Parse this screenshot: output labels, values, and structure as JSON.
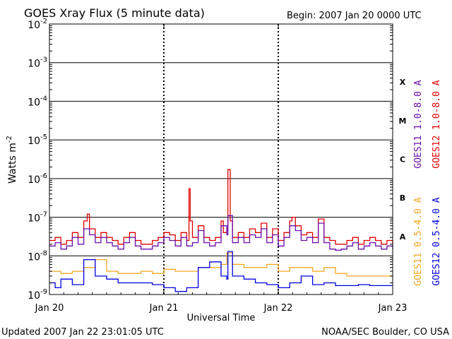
{
  "chart_data": {
    "type": "line",
    "title": "GOES Xray Flux (5 minute data)",
    "begin_text": "Begin:  2007 Jan 20 0000 UTC",
    "xlabel": "Universal Time",
    "ylabel": "Watts m",
    "ylabel_superscript": "-2",
    "y_scale": "log",
    "ylim": [
      1e-09,
      0.01
    ],
    "xlim_days": [
      0,
      3
    ],
    "grid": "horizontal decade lines; dotted vertical day lines",
    "x_ticks": [
      {
        "value": 0,
        "label": "Jan 20"
      },
      {
        "value": 1,
        "label": "Jan 21"
      },
      {
        "value": 2,
        "label": "Jan 22"
      },
      {
        "value": 3,
        "label": "Jan 23"
      }
    ],
    "y_ticks": [
      {
        "exp": -9,
        "base": "10",
        "sup": "-9"
      },
      {
        "exp": -8,
        "base": "10",
        "sup": "-8"
      },
      {
        "exp": -7,
        "base": "10",
        "sup": "-7"
      },
      {
        "exp": -6,
        "base": "10",
        "sup": "-6"
      },
      {
        "exp": -5,
        "base": "10",
        "sup": "-5"
      },
      {
        "exp": -4,
        "base": "10",
        "sup": "-4"
      },
      {
        "exp": -3,
        "base": "10",
        "sup": "-3"
      },
      {
        "exp": -2,
        "base": "10",
        "sup": "-2"
      }
    ],
    "flare_classes": [
      {
        "label": "X",
        "exp": -3.5
      },
      {
        "label": "M",
        "exp": -4.5
      },
      {
        "label": "C",
        "exp": -5.5
      },
      {
        "label": "B",
        "exp": -6.5
      },
      {
        "label": "A",
        "exp": -7.5
      }
    ],
    "legend_right": [
      {
        "name": "GOES11 1.0-8.0 A",
        "color": "#6a0dad"
      },
      {
        "name": "GOES12 1.0-8.0 A",
        "color": "#e00000"
      }
    ],
    "legend_bottom": [
      {
        "name": "GOES11 0.5-4.0 A",
        "color": "#f5a623"
      },
      {
        "name": "GOES12 0.5-4.0 A",
        "color": "#0000e0"
      }
    ],
    "series": [
      {
        "name": "GOES12 1.0-8.0 A",
        "color": "#e00000",
        "x": [
          0.0,
          0.05,
          0.1,
          0.15,
          0.2,
          0.25,
          0.3,
          0.33,
          0.35,
          0.4,
          0.45,
          0.5,
          0.55,
          0.6,
          0.65,
          0.7,
          0.75,
          0.8,
          0.85,
          0.9,
          0.95,
          1.0,
          1.05,
          1.1,
          1.15,
          1.2,
          1.22,
          1.23,
          1.25,
          1.3,
          1.35,
          1.4,
          1.45,
          1.5,
          1.52,
          1.55,
          1.56,
          1.58,
          1.6,
          1.65,
          1.7,
          1.75,
          1.8,
          1.85,
          1.9,
          1.95,
          2.0,
          2.05,
          2.1,
          2.12,
          2.15,
          2.2,
          2.25,
          2.3,
          2.35,
          2.4,
          2.45,
          2.5,
          2.55,
          2.6,
          2.65,
          2.7,
          2.75,
          2.8,
          2.85,
          2.9,
          2.95,
          3.0
        ],
        "y": [
          2.5e-08,
          3e-08,
          2e-08,
          2.5e-08,
          4e-08,
          3e-08,
          8e-08,
          1.2e-07,
          5e-08,
          3e-08,
          4e-08,
          3e-08,
          2.5e-08,
          2e-08,
          3e-08,
          4e-08,
          2.5e-08,
          2e-08,
          2e-08,
          2.5e-08,
          3e-08,
          4e-08,
          3.5e-08,
          2.5e-08,
          4e-08,
          2.5e-08,
          5.5e-07,
          8e-08,
          3e-08,
          6e-08,
          3e-08,
          2.5e-08,
          3e-08,
          8e-08,
          4e-08,
          5e-08,
          1.7e-06,
          8e-08,
          3e-08,
          4e-08,
          3e-08,
          5e-08,
          4e-08,
          7e-08,
          3e-08,
          5e-08,
          2.5e-08,
          4e-08,
          8e-08,
          1e-07,
          6e-08,
          3.5e-08,
          4e-08,
          3e-08,
          9e-08,
          3e-08,
          2.5e-08,
          2e-08,
          2e-08,
          2.5e-08,
          3e-08,
          2e-08,
          2.5e-08,
          3e-08,
          2.5e-08,
          2e-08,
          2.5e-08,
          2e-08
        ]
      },
      {
        "name": "GOES11 1.0-8.0 A",
        "color": "#6a0dad",
        "x": [
          0.0,
          0.05,
          0.1,
          0.15,
          0.2,
          0.25,
          0.3,
          0.35,
          0.4,
          0.45,
          0.5,
          0.55,
          0.6,
          0.65,
          0.7,
          0.75,
          0.8,
          0.85,
          0.9,
          0.95,
          1.0,
          1.05,
          1.1,
          1.15,
          1.2,
          1.25,
          1.3,
          1.35,
          1.4,
          1.45,
          1.5,
          1.55,
          1.56,
          1.6,
          1.65,
          1.7,
          1.75,
          1.8,
          1.85,
          1.9,
          1.95,
          2.0,
          2.05,
          2.1,
          2.15,
          2.2,
          2.25,
          2.3,
          2.35,
          2.4,
          2.45,
          2.5,
          2.55,
          2.6,
          2.65,
          2.7,
          2.75,
          2.8,
          2.85,
          2.9,
          2.95,
          3.0
        ],
        "y": [
          1.8e-08,
          2.2e-08,
          1.5e-08,
          1.8e-08,
          3e-08,
          2e-08,
          5e-08,
          3.5e-08,
          2.2e-08,
          3e-08,
          2.2e-08,
          1.8e-08,
          1.5e-08,
          2.2e-08,
          3e-08,
          1.8e-08,
          1.5e-08,
          1.5e-08,
          1.8e-08,
          2.2e-08,
          3e-08,
          2.5e-08,
          1.8e-08,
          3e-08,
          1.8e-08,
          2.2e-08,
          4.5e-08,
          2.2e-08,
          1.8e-08,
          2.2e-08,
          6e-08,
          3.5e-08,
          1.1e-07,
          2.2e-08,
          3e-08,
          2.2e-08,
          3.5e-08,
          3e-08,
          5e-08,
          2.2e-08,
          3.5e-08,
          1.8e-08,
          3e-08,
          6e-08,
          4.5e-08,
          2.5e-08,
          3e-08,
          2.2e-08,
          7e-08,
          2.2e-08,
          1.5e-08,
          1.4e-08,
          1.5e-08,
          1.8e-08,
          2.2e-08,
          1.5e-08,
          1.8e-08,
          2.2e-08,
          1.8e-08,
          1.5e-08,
          1.8e-08,
          1.5e-08
        ]
      },
      {
        "name": "GOES11 0.5-4.0 A",
        "color": "#f5a623",
        "x": [
          0.0,
          0.1,
          0.2,
          0.3,
          0.4,
          0.5,
          0.6,
          0.7,
          0.8,
          0.9,
          1.0,
          1.1,
          1.2,
          1.3,
          1.4,
          1.5,
          1.55,
          1.6,
          1.7,
          1.8,
          1.9,
          2.0,
          2.1,
          2.2,
          2.3,
          2.4,
          2.5,
          2.6,
          2.7,
          2.8,
          2.9,
          3.0
        ],
        "y": [
          4e-09,
          3.5e-09,
          4e-09,
          5e-09,
          8e-09,
          4e-09,
          3.5e-09,
          3.5e-09,
          4e-09,
          3.5e-09,
          4.5e-09,
          4e-09,
          4e-09,
          5e-09,
          5e-09,
          6e-09,
          1.2e-08,
          6e-09,
          5e-09,
          5e-09,
          6e-09,
          4e-09,
          5e-09,
          5e-09,
          4e-09,
          5e-09,
          3.5e-09,
          3e-09,
          3e-09,
          3e-09,
          3e-09,
          3e-09
        ]
      },
      {
        "name": "GOES12 0.5-4.0 A",
        "color": "#0000e0",
        "x": [
          0.0,
          0.05,
          0.1,
          0.2,
          0.3,
          0.4,
          0.5,
          0.6,
          0.7,
          0.8,
          0.9,
          1.0,
          1.1,
          1.2,
          1.3,
          1.4,
          1.5,
          1.55,
          1.56,
          1.6,
          1.7,
          1.8,
          1.9,
          2.0,
          2.1,
          2.2,
          2.3,
          2.4,
          2.5,
          2.6,
          2.7,
          2.8,
          2.9,
          3.0
        ],
        "y": [
          2e-09,
          1.5e-09,
          2.5e-09,
          1.8e-09,
          8e-09,
          3e-09,
          2.5e-09,
          2e-09,
          2e-09,
          2e-09,
          1.8e-09,
          1.5e-09,
          1.2e-09,
          1.5e-09,
          5e-09,
          7e-09,
          3e-09,
          2.5e-09,
          1.3e-08,
          3e-09,
          2.5e-09,
          2e-09,
          1.8e-09,
          1.5e-09,
          2e-09,
          3e-09,
          1.8e-09,
          2e-09,
          1.7e-09,
          1.7e-09,
          1.8e-09,
          1.7e-09,
          1.7e-09,
          1.7e-09
        ]
      }
    ]
  },
  "footer": {
    "updated": "Updated 2007 Jan 22 23:01:05 UTC",
    "credit": "NOAA/SEC Boulder, CO USA"
  }
}
